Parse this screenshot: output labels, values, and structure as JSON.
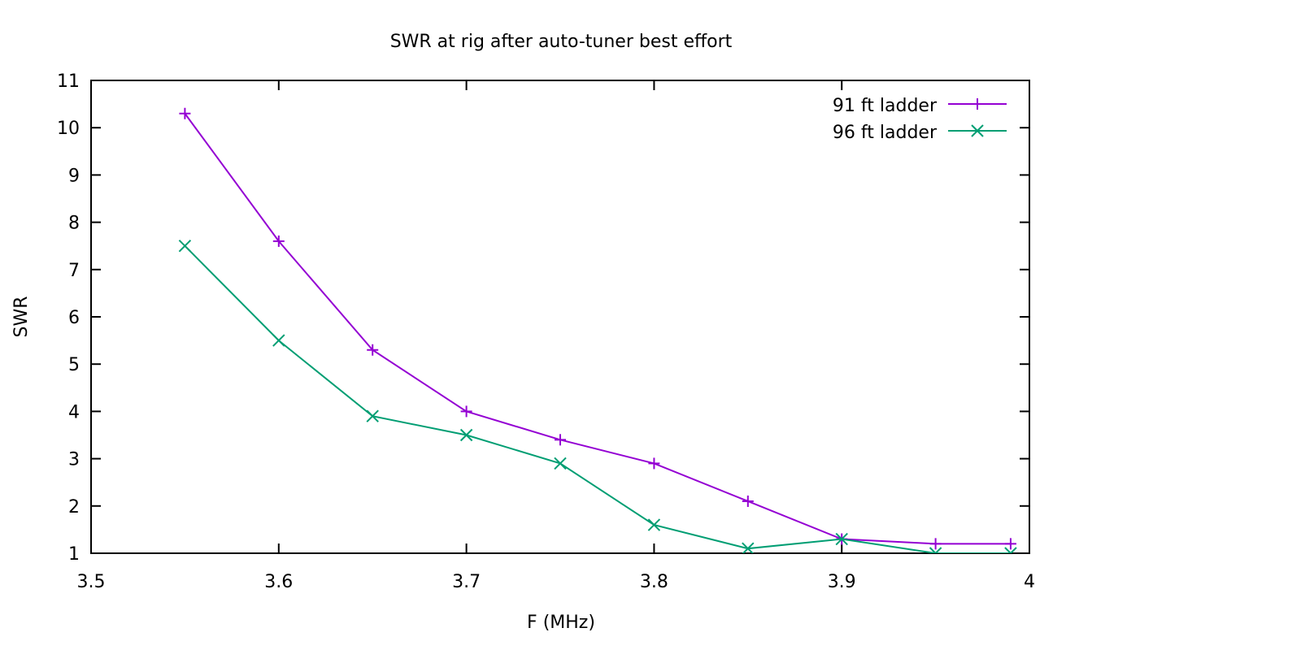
{
  "chart_data": {
    "type": "line",
    "title": "SWR at rig after auto-tuner best effort",
    "xlabel": "F (MHz)",
    "ylabel": "SWR",
    "xlim": [
      3.5,
      4.0
    ],
    "ylim": [
      1,
      11
    ],
    "xticks": [
      "3.5",
      "3.6",
      "3.7",
      "3.8",
      "3.9",
      "4"
    ],
    "yticks": [
      "1",
      "2",
      "3",
      "4",
      "5",
      "6",
      "7",
      "8",
      "9",
      "10",
      "11"
    ],
    "grid": false,
    "legend_position": "top-right",
    "series": [
      {
        "name": "91 ft ladder",
        "color": "#9400d3",
        "marker": "plus",
        "x": [
          3.55,
          3.6,
          3.65,
          3.7,
          3.75,
          3.8,
          3.85,
          3.9,
          3.95,
          3.99
        ],
        "y": [
          10.3,
          7.6,
          5.3,
          4.0,
          3.4,
          2.9,
          2.1,
          1.3,
          1.2,
          1.2
        ]
      },
      {
        "name": "96 ft ladder",
        "color": "#009e73",
        "marker": "cross",
        "x": [
          3.55,
          3.6,
          3.65,
          3.7,
          3.75,
          3.8,
          3.85,
          3.9,
          3.95,
          3.99
        ],
        "y": [
          7.5,
          5.5,
          3.9,
          3.5,
          2.9,
          1.6,
          1.1,
          1.3,
          1.0,
          1.0
        ]
      }
    ]
  }
}
